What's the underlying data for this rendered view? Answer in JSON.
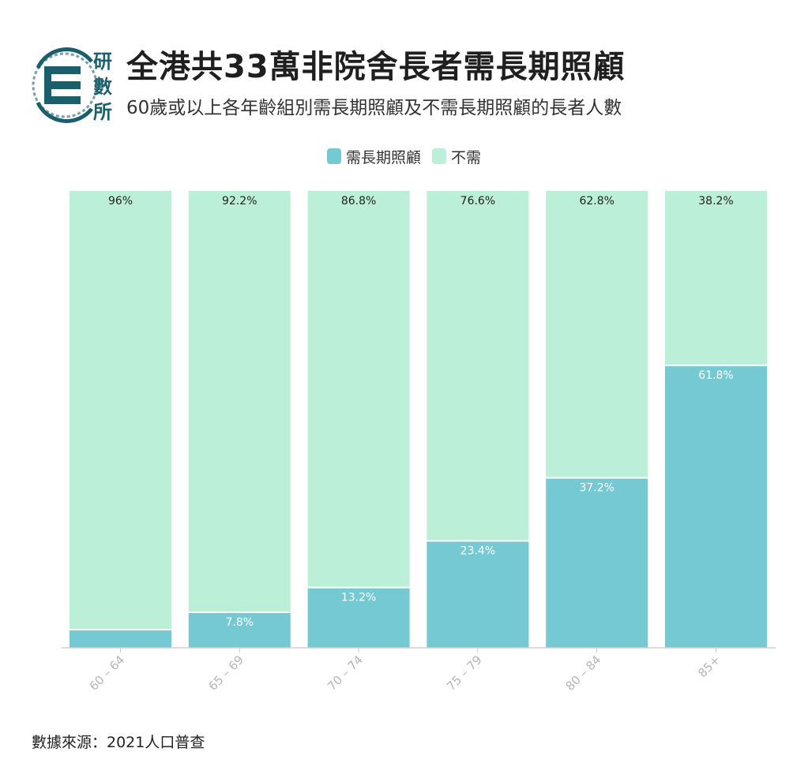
{
  "logo": {
    "text": [
      "研",
      "數",
      "所"
    ]
  },
  "header": {
    "title": "全港共33萬非院舍長者需長期照顧",
    "subtitle": "60歲或以上各年齡組別需長期照顧及不需長期照顧的長者人數"
  },
  "legend": [
    {
      "label": "需長期照顧",
      "color": "#74c9d2"
    },
    {
      "label": "不需",
      "color": "#bcefd7"
    }
  ],
  "chart_data": {
    "type": "bar",
    "stacked": true,
    "normalized_percent": true,
    "categories": [
      "60 – 64",
      "65 – 69",
      "70 – 74",
      "75 – 79",
      "80 – 84",
      "85+"
    ],
    "series": [
      {
        "name": "需長期照顧",
        "color": "#74c9d2",
        "values": [
          4,
          7.8,
          13.2,
          23.4,
          37.2,
          61.8
        ],
        "labels": [
          "",
          "7.8%",
          "13.2%",
          "23.4%",
          "37.2%",
          "61.8%"
        ]
      },
      {
        "name": "不需",
        "color": "#bcefd7",
        "values": [
          96,
          92.2,
          86.8,
          76.6,
          62.8,
          38.2
        ],
        "labels": [
          "96%",
          "92.2%",
          "86.8%",
          "76.6%",
          "62.8%",
          "38.2%"
        ]
      }
    ],
    "ylim": [
      0,
      100
    ],
    "xlabel": "",
    "ylabel": "",
    "tick_label_rotation_deg": -45,
    "legend_position": "top-center",
    "grid": false
  },
  "footer": {
    "source": "數據來源：2021人口普查"
  }
}
